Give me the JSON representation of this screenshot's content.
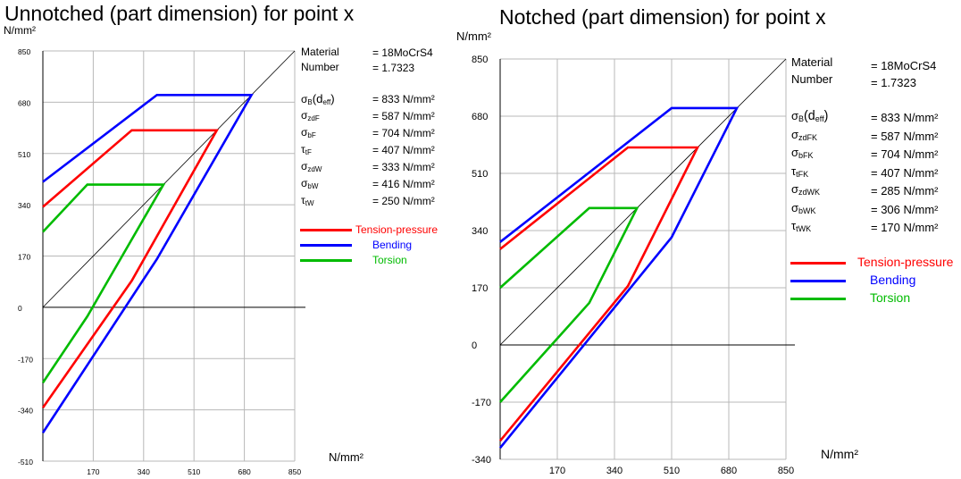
{
  "charts": [
    {
      "title": "Unnotched (part dimension) for point x",
      "yunit": "N/mm²",
      "xunit": "N/mm²",
      "material": {
        "label1": "Material",
        "label2": "Number",
        "value1": "= 18MoCrS4",
        "value2": "= 1.7323"
      },
      "params": [
        {
          "sym": "σ",
          "sub": "B",
          "extra": "(d",
          "extra_sub": "eff",
          "close": ")",
          "value": "= 833  N/mm²"
        },
        {
          "sym": "σ",
          "sub": "zdF",
          "value": "= 587  N/mm²"
        },
        {
          "sym": "σ",
          "sub": "bF",
          "value": "= 704  N/mm²"
        },
        {
          "sym": "τ",
          "sub": "tF",
          "value": "= 407  N/mm²"
        },
        {
          "sym": "σ",
          "sub": "zdW",
          "value": "= 333  N/mm²"
        },
        {
          "sym": "σ",
          "sub": "bW",
          "value": "= 416  N/mm²"
        },
        {
          "sym": "τ",
          "sub": "tW",
          "value": "= 250  N/mm²"
        }
      ],
      "legend": [
        {
          "label": "Tension-pressure",
          "color": "#ff0000"
        },
        {
          "label": "Bending",
          "color": "#0000ff"
        },
        {
          "label": "Torsion",
          "color": "#00bb00"
        }
      ]
    },
    {
      "title": "Notched (part dimension) for point x",
      "yunit": "N/mm²",
      "xunit": "N/mm²",
      "material": {
        "label1": "Material",
        "label2": "Number",
        "value1": "= 18MoCrS4",
        "value2": "= 1.7323"
      },
      "params": [
        {
          "sym": "σ",
          "sub": "B",
          "extra": "(d",
          "extra_sub": "eff",
          "close": ")",
          "value": "= 833  N/mm²"
        },
        {
          "sym": "σ",
          "sub": "zdFK",
          "value": "= 587  N/mm²"
        },
        {
          "sym": "σ",
          "sub": "bFK",
          "value": "= 704  N/mm²"
        },
        {
          "sym": "τ",
          "sub": "tFK",
          "value": "= 407  N/mm²"
        },
        {
          "sym": "σ",
          "sub": "zdWK",
          "value": "= 285  N/mm²"
        },
        {
          "sym": "σ",
          "sub": "bWK",
          "value": "= 306  N/mm²"
        },
        {
          "sym": "τ",
          "sub": "tWK",
          "value": "= 170  N/mm²"
        }
      ],
      "legend": [
        {
          "label": "Tension-pressure",
          "color": "#ff0000"
        },
        {
          "label": "Bending",
          "color": "#0000ff"
        },
        {
          "label": "Torsion",
          "color": "#00bb00"
        }
      ]
    }
  ],
  "chart_data": [
    {
      "type": "line",
      "title": "Unnotched (part dimension) for point x",
      "xlabel": "N/mm²",
      "ylabel": "N/mm²",
      "xlim": [
        0,
        850
      ],
      "ylim": [
        -510,
        850
      ],
      "xticks": [
        170,
        340,
        510,
        680,
        850
      ],
      "yticks": [
        850,
        680,
        510,
        340,
        170,
        0,
        -170,
        -340,
        -510
      ],
      "grid": true,
      "series": [
        {
          "name": "Tension-pressure",
          "color": "#ff0000",
          "x": [
            0,
            295,
            587,
            587,
            295,
            0
          ],
          "y": [
            -333,
            587,
            587,
            587,
            587,
            333
          ]
        },
        {
          "name": "Bending",
          "color": "#0000ff",
          "x": [
            0,
            385,
            704,
            704,
            385,
            0
          ],
          "y": [
            -416,
            704,
            704,
            704,
            704,
            416
          ]
        },
        {
          "name": "Torsion",
          "color": "#00bb00",
          "x": [
            0,
            155,
            407,
            407,
            155,
            0
          ],
          "y": [
            -250,
            407,
            407,
            407,
            407,
            250
          ]
        }
      ],
      "envelopes": [
        {
          "name": "Tension-pressure",
          "color": "#ff0000",
          "x": [
            0,
            300,
            587,
            300,
            0
          ],
          "y": [
            -333,
            88,
            587,
            587,
            333
          ]
        },
        {
          "name": "Bending",
          "color": "#0000ff",
          "x": [
            0,
            385,
            704,
            385,
            0
          ],
          "y": [
            -416,
            160,
            704,
            704,
            416
          ]
        },
        {
          "name": "Torsion",
          "color": "#00bb00",
          "x": [
            0,
            150,
            407,
            150,
            0
          ],
          "y": [
            -250,
            -30,
            407,
            407,
            250
          ]
        }
      ],
      "diagonal": {
        "x": [
          0,
          850
        ],
        "y": [
          0,
          850
        ]
      }
    },
    {
      "type": "line",
      "title": "Notched (part dimension) for point x",
      "xlabel": "N/mm²",
      "ylabel": "N/mm²",
      "xlim": [
        0,
        850
      ],
      "ylim": [
        -340,
        850
      ],
      "xticks": [
        170,
        340,
        510,
        680,
        850
      ],
      "yticks": [
        850,
        680,
        510,
        340,
        170,
        0,
        -170,
        -340
      ],
      "grid": true,
      "envelopes": [
        {
          "name": "Tension-pressure",
          "color": "#ff0000",
          "x": [
            0,
            380,
            587,
            380,
            0
          ],
          "y": [
            -285,
            175,
            587,
            587,
            285
          ]
        },
        {
          "name": "Bending",
          "color": "#0000ff",
          "x": [
            0,
            510,
            704,
            510,
            0
          ],
          "y": [
            -306,
            320,
            704,
            704,
            306
          ]
        },
        {
          "name": "Torsion",
          "color": "#00bb00",
          "x": [
            0,
            265,
            407,
            265,
            0
          ],
          "y": [
            -170,
            125,
            407,
            407,
            170
          ]
        }
      ],
      "diagonal": {
        "x": [
          0,
          850
        ],
        "y": [
          0,
          850
        ]
      }
    }
  ]
}
